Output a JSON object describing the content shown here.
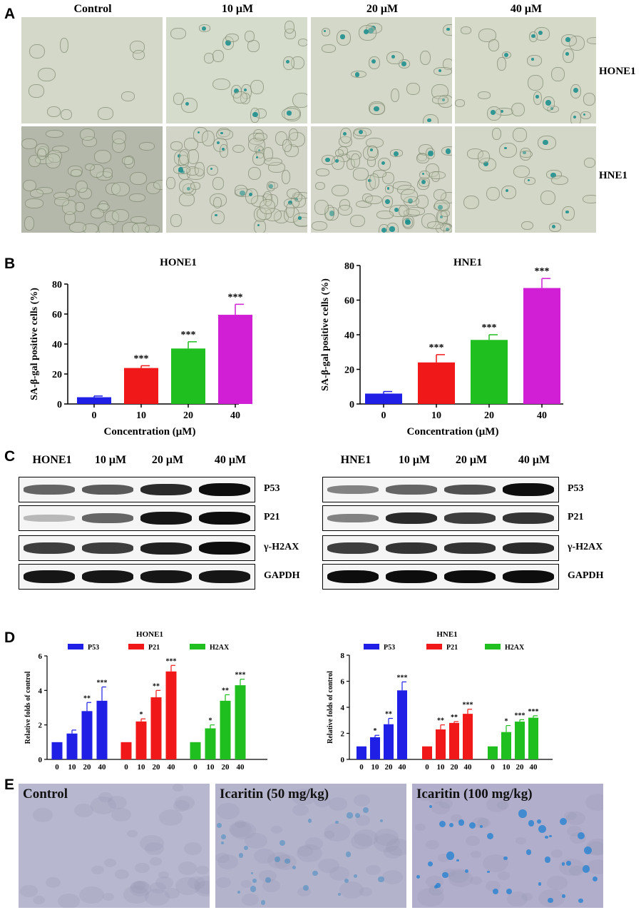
{
  "panel_labels": {
    "a": "A",
    "b": "B",
    "c": "C",
    "d": "D",
    "e": "E"
  },
  "panel_a": {
    "column_headers": [
      "Control",
      "10 μM",
      "20 μM",
      "40 μM"
    ],
    "row_labels": [
      "HONE1",
      "HNE1"
    ]
  },
  "panel_c": {
    "left": {
      "lane_headers": [
        "HONE1",
        "10 μM",
        "20 μM",
        "40 μM"
      ],
      "band_labels": [
        "P53",
        "P21",
        "γ-H2AX",
        "GAPDH"
      ],
      "intensities": [
        [
          0.55,
          0.6,
          0.85,
          1.0
        ],
        [
          0.12,
          0.55,
          0.95,
          1.0
        ],
        [
          0.75,
          0.75,
          0.9,
          1.0
        ],
        [
          0.95,
          0.95,
          0.95,
          0.95
        ]
      ]
    },
    "right": {
      "lane_headers": [
        "HNE1",
        "10 μM",
        "20 μM",
        "40 μM"
      ],
      "band_labels": [
        "P53",
        "P21",
        "γ-H2AX",
        "GAPDH"
      ],
      "intensities": [
        [
          0.4,
          0.55,
          0.65,
          1.0
        ],
        [
          0.4,
          0.85,
          0.75,
          0.8
        ],
        [
          0.75,
          0.8,
          0.8,
          0.85
        ],
        [
          1.0,
          1.0,
          1.0,
          1.0
        ]
      ]
    }
  },
  "panel_e": {
    "labels": [
      "Control",
      "Icaritin (50 mg/kg)",
      "Icaritin (100 mg/kg)"
    ]
  },
  "colors": {
    "blue": "#1f1fe6",
    "red": "#f01818",
    "green": "#1fbf1f",
    "magenta": "#d11fd6"
  },
  "chart_data": [
    {
      "type": "bar",
      "title": "HONE1",
      "xlabel": "Concentration (μM)",
      "ylabel": "SA-β-gal positive cells (%)",
      "ylim": [
        0,
        80
      ],
      "yticks": [
        0,
        20,
        40,
        60,
        80
      ],
      "categories": [
        "0",
        "10",
        "20",
        "40"
      ],
      "values": [
        4.5,
        24,
        37,
        59.5
      ],
      "errors": [
        0.8,
        1.5,
        4.5,
        7
      ],
      "significance": [
        "",
        "***",
        "***",
        "***"
      ],
      "bar_colors": [
        "#1f1fe6",
        "#f01818",
        "#1fbf1f",
        "#d11fd6"
      ]
    },
    {
      "type": "bar",
      "title": "HNE1",
      "xlabel": "Concentration (μM)",
      "ylabel": "SA-β-gal positive cells (%)",
      "ylim": [
        0,
        80
      ],
      "yticks": [
        0,
        20,
        40,
        60,
        80
      ],
      "categories": [
        "0",
        "10",
        "20",
        "40"
      ],
      "values": [
        6,
        24,
        37,
        67
      ],
      "errors": [
        1.2,
        4.5,
        3,
        5.5
      ],
      "significance": [
        "",
        "***",
        "***",
        "***"
      ],
      "bar_colors": [
        "#1f1fe6",
        "#f01818",
        "#1fbf1f",
        "#d11fd6"
      ]
    },
    {
      "type": "bar",
      "title": "HONE1",
      "xlabel": "Concentration (μM)",
      "ylabel": "Relative folds of control",
      "ylim": [
        0,
        6
      ],
      "yticks": [
        0,
        2,
        4,
        6
      ],
      "categories": [
        "0",
        "10",
        "20",
        "40"
      ],
      "legend_position": "top",
      "series": [
        {
          "name": "P53",
          "color": "#1f1fe6",
          "values": [
            1,
            1.5,
            2.8,
            3.4
          ],
          "errors": [
            0,
            0.2,
            0.5,
            0.8
          ],
          "significance": [
            "",
            "",
            "**",
            "***"
          ]
        },
        {
          "name": "P21",
          "color": "#f01818",
          "values": [
            1,
            2.2,
            3.6,
            5.1
          ],
          "errors": [
            0,
            0.15,
            0.4,
            0.35
          ],
          "significance": [
            "",
            "*",
            "**",
            "***"
          ]
        },
        {
          "name": "H2AX",
          "color": "#1fbf1f",
          "values": [
            1,
            1.8,
            3.4,
            4.3
          ],
          "errors": [
            0,
            0.2,
            0.35,
            0.35
          ],
          "significance": [
            "",
            "*",
            "**",
            "***"
          ]
        }
      ]
    },
    {
      "type": "bar",
      "title": "HNE1",
      "xlabel": "Concentration (μM)",
      "ylabel": "Relative folds of control",
      "ylim": [
        0,
        8
      ],
      "yticks": [
        0,
        2,
        4,
        6,
        8
      ],
      "categories": [
        "0",
        "10",
        "20",
        "40"
      ],
      "legend_position": "top",
      "series": [
        {
          "name": "P53",
          "color": "#1f1fe6",
          "values": [
            1,
            1.7,
            2.7,
            5.3
          ],
          "errors": [
            0,
            0.15,
            0.45,
            0.65
          ],
          "significance": [
            "",
            "*",
            "**",
            "***"
          ]
        },
        {
          "name": "P21",
          "color": "#f01818",
          "values": [
            1,
            2.3,
            2.8,
            3.5
          ],
          "errors": [
            0,
            0.35,
            0.1,
            0.35
          ],
          "significance": [
            "",
            "**",
            "**",
            "***"
          ]
        },
        {
          "name": "H2AX",
          "color": "#1fbf1f",
          "values": [
            1,
            2.1,
            2.9,
            3.2
          ],
          "errors": [
            0,
            0.5,
            0.15,
            0.15
          ],
          "significance": [
            "",
            "*",
            "***",
            "***"
          ]
        }
      ]
    }
  ]
}
